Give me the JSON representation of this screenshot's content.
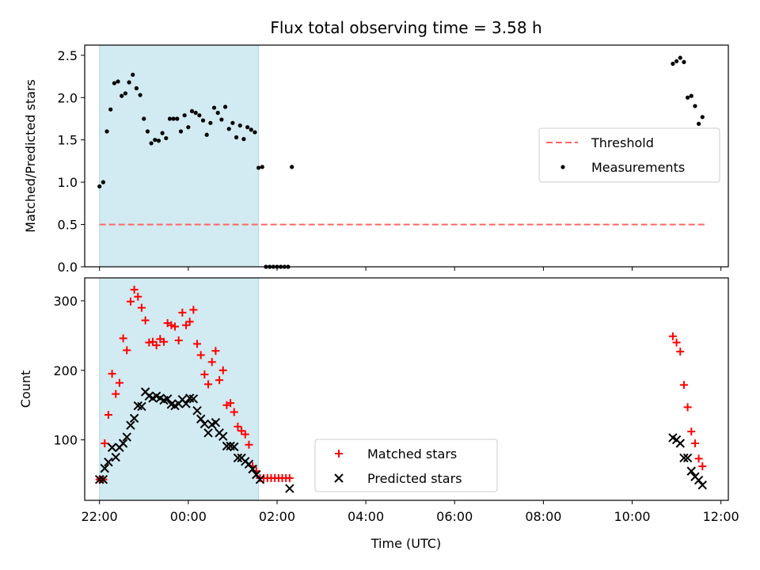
{
  "chart_data": [
    {
      "type": "scatter",
      "title": "Flux total observing time = 3.58 h",
      "xlabel": "",
      "ylabel": "Matched/Predicted stars",
      "x_axis_type": "time",
      "xlim": [
        "21:40",
        "12:10"
      ],
      "ylim": [
        0,
        2.62
      ],
      "yticks": [
        "0.0",
        "0.5",
        "1.0",
        "1.5",
        "2.0",
        "2.5"
      ],
      "highlight_span": {
        "start": "22:00",
        "end": "01:35",
        "color": "#add8e6"
      },
      "legend": {
        "placement": "center-right",
        "entries": [
          "Threshold",
          "Measurements"
        ]
      },
      "series": [
        {
          "name": "Threshold",
          "style": "dashed-line",
          "color": "#ff6666",
          "points": [
            [
              "22:00",
              0.5
            ],
            [
              "11:40",
              0.5
            ]
          ]
        },
        {
          "name": "Measurements",
          "style": "dot",
          "color": "#000000",
          "points": [
            [
              "22:00",
              0.95
            ],
            [
              "22:05",
              1.0
            ],
            [
              "22:10",
              1.6
            ],
            [
              "22:15",
              1.86
            ],
            [
              "22:20",
              2.17
            ],
            [
              "22:25",
              2.19
            ],
            [
              "22:30",
              2.02
            ],
            [
              "22:35",
              2.05
            ],
            [
              "22:40",
              2.18
            ],
            [
              "22:45",
              2.27
            ],
            [
              "22:50",
              2.11
            ],
            [
              "22:55",
              2.03
            ],
            [
              "23:00",
              1.75
            ],
            [
              "23:05",
              1.6
            ],
            [
              "23:10",
              1.46
            ],
            [
              "23:15",
              1.5
            ],
            [
              "23:20",
              1.49
            ],
            [
              "23:25",
              1.58
            ],
            [
              "23:30",
              1.52
            ],
            [
              "23:35",
              1.75
            ],
            [
              "23:40",
              1.75
            ],
            [
              "23:45",
              1.75
            ],
            [
              "23:50",
              1.6
            ],
            [
              "23:55",
              1.79
            ],
            [
              "00:00",
              1.65
            ],
            [
              "00:05",
              1.84
            ],
            [
              "00:10",
              1.82
            ],
            [
              "00:15",
              1.79
            ],
            [
              "00:20",
              1.73
            ],
            [
              "00:25",
              1.56
            ],
            [
              "00:30",
              1.7
            ],
            [
              "00:35",
              1.88
            ],
            [
              "00:40",
              1.82
            ],
            [
              "00:45",
              1.74
            ],
            [
              "00:50",
              1.89
            ],
            [
              "00:55",
              1.63
            ],
            [
              "01:00",
              1.7
            ],
            [
              "01:05",
              1.53
            ],
            [
              "01:10",
              1.67
            ],
            [
              "01:15",
              1.51
            ],
            [
              "01:20",
              1.65
            ],
            [
              "01:25",
              1.62
            ],
            [
              "01:30",
              1.59
            ],
            [
              "01:35",
              1.17
            ],
            [
              "01:40",
              1.18
            ],
            [
              "01:45",
              0.0
            ],
            [
              "01:50",
              0.0
            ],
            [
              "01:55",
              0.0
            ],
            [
              "02:00",
              0.0
            ],
            [
              "02:05",
              0.0
            ],
            [
              "02:10",
              0.0
            ],
            [
              "02:15",
              0.0
            ],
            [
              "02:20",
              1.18
            ],
            [
              "10:55",
              2.4
            ],
            [
              "11:00",
              2.43
            ],
            [
              "11:05",
              2.47
            ],
            [
              "11:10",
              2.42
            ],
            [
              "11:15",
              2.0
            ],
            [
              "11:20",
              2.02
            ],
            [
              "11:25",
              1.9
            ],
            [
              "11:30",
              1.69
            ],
            [
              "11:35",
              1.77
            ]
          ]
        }
      ]
    },
    {
      "type": "scatter",
      "title": "",
      "xlabel": "Time (UTC)",
      "ylabel": "Count",
      "x_axis_type": "time",
      "xlim": [
        "21:40",
        "12:10"
      ],
      "ylim": [
        13,
        333
      ],
      "xticks": [
        "22:00",
        "00:00",
        "02:00",
        "04:00",
        "06:00",
        "08:00",
        "10:00",
        "12:00"
      ],
      "yticks": [
        "100",
        "200",
        "300"
      ],
      "highlight_span": {
        "start": "22:00",
        "end": "01:35",
        "color": "#add8e6"
      },
      "legend": {
        "placement": "bottom-center",
        "entries": [
          "Matched stars",
          "Predicted stars"
        ]
      },
      "series": [
        {
          "name": "Matched stars",
          "style": "plus",
          "color": "#ff0000",
          "points": [
            [
              "22:00",
              43
            ],
            [
              "22:05",
              43
            ],
            [
              "22:07",
              95
            ],
            [
              "22:12",
              136
            ],
            [
              "22:17",
              195
            ],
            [
              "22:22",
              166
            ],
            [
              "22:27",
              182
            ],
            [
              "22:32",
              246
            ],
            [
              "22:37",
              229
            ],
            [
              "22:42",
              299
            ],
            [
              "22:47",
              316
            ],
            [
              "22:52",
              306
            ],
            [
              "22:57",
              290
            ],
            [
              "23:02",
              272
            ],
            [
              "23:07",
              240
            ],
            [
              "23:12",
              241
            ],
            [
              "23:17",
              236
            ],
            [
              "23:22",
              245
            ],
            [
              "23:27",
              241
            ],
            [
              "23:32",
              268
            ],
            [
              "23:37",
              265
            ],
            [
              "23:42",
              263
            ],
            [
              "23:47",
              243
            ],
            [
              "23:52",
              283
            ],
            [
              "23:57",
              265
            ],
            [
              "00:02",
              270
            ],
            [
              "00:07",
              287
            ],
            [
              "00:12",
              238
            ],
            [
              "00:17",
              222
            ],
            [
              "00:22",
              194
            ],
            [
              "00:27",
              180
            ],
            [
              "00:32",
              212
            ],
            [
              "00:37",
              228
            ],
            [
              "00:42",
              186
            ],
            [
              "00:47",
              200
            ],
            [
              "00:52",
              150
            ],
            [
              "00:57",
              153
            ],
            [
              "01:02",
              140
            ],
            [
              "01:07",
              119
            ],
            [
              "01:12",
              113
            ],
            [
              "01:17",
              108
            ],
            [
              "01:22",
              93
            ],
            [
              "01:27",
              62
            ],
            [
              "01:32",
              55
            ],
            [
              "01:37",
              45
            ],
            [
              "01:42",
              45
            ],
            [
              "01:47",
              45
            ],
            [
              "01:52",
              45
            ],
            [
              "01:57",
              45
            ],
            [
              "02:02",
              45
            ],
            [
              "02:07",
              45
            ],
            [
              "02:12",
              45
            ],
            [
              "02:17",
              45
            ],
            [
              "10:55",
              249
            ],
            [
              "11:00",
              240
            ],
            [
              "11:05",
              227
            ],
            [
              "11:10",
              179
            ],
            [
              "11:15",
              147
            ],
            [
              "11:20",
              112
            ],
            [
              "11:25",
              95
            ],
            [
              "11:30",
              73
            ],
            [
              "11:35",
              62
            ]
          ]
        },
        {
          "name": "Predicted stars",
          "style": "x",
          "color": "#000000",
          "points": [
            [
              "22:00",
              43
            ],
            [
              "22:05",
              43
            ],
            [
              "22:07",
              59
            ],
            [
              "22:12",
              68
            ],
            [
              "22:17",
              89
            ],
            [
              "22:22",
              75
            ],
            [
              "22:27",
              89
            ],
            [
              "22:32",
              95
            ],
            [
              "22:37",
              104
            ],
            [
              "22:42",
              121
            ],
            [
              "22:47",
              131
            ],
            [
              "22:52",
              149
            ],
            [
              "22:57",
              148
            ],
            [
              "23:02",
              169
            ],
            [
              "23:07",
              163
            ],
            [
              "23:12",
              160
            ],
            [
              "23:17",
              163
            ],
            [
              "23:22",
              160
            ],
            [
              "23:27",
              157
            ],
            [
              "23:32",
              159
            ],
            [
              "23:37",
              151
            ],
            [
              "23:42",
              149
            ],
            [
              "23:47",
              152
            ],
            [
              "23:52",
              158
            ],
            [
              "23:57",
              152
            ],
            [
              "00:02",
              160
            ],
            [
              "00:07",
              159
            ],
            [
              "00:12",
              142
            ],
            [
              "00:17",
              130
            ],
            [
              "00:22",
              123
            ],
            [
              "00:27",
              110
            ],
            [
              "00:32",
              122
            ],
            [
              "00:37",
              125
            ],
            [
              "00:42",
              110
            ],
            [
              "00:47",
              105
            ],
            [
              "00:52",
              91
            ],
            [
              "00:57",
              91
            ],
            [
              "01:02",
              90
            ],
            [
              "01:07",
              74
            ],
            [
              "01:12",
              74
            ],
            [
              "01:17",
              69
            ],
            [
              "01:22",
              65
            ],
            [
              "01:27",
              58
            ],
            [
              "01:32",
              50
            ],
            [
              "01:37",
              43
            ],
            [
              "02:17",
              30
            ],
            [
              "10:55",
              103
            ],
            [
              "11:00",
              100
            ],
            [
              "11:05",
              95
            ],
            [
              "11:10",
              74
            ],
            [
              "11:15",
              74
            ],
            [
              "11:20",
              55
            ],
            [
              "11:25",
              47
            ],
            [
              "11:30",
              42
            ],
            [
              "11:35",
              35
            ]
          ]
        }
      ]
    }
  ]
}
